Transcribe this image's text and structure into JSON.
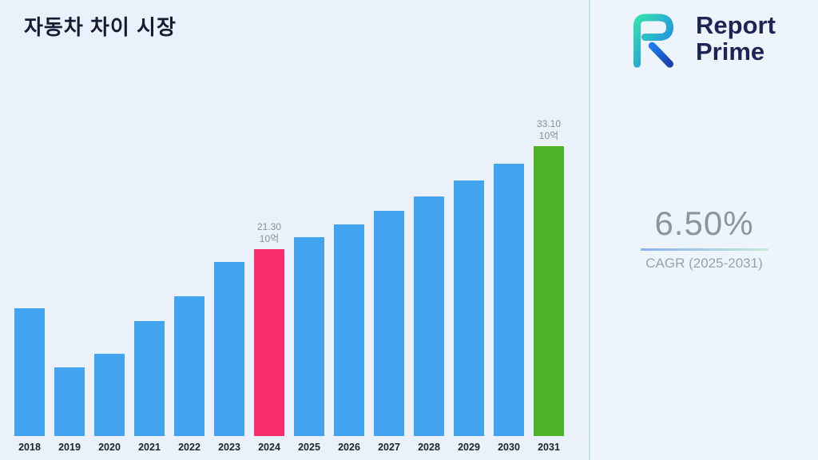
{
  "title": "자동차 차이 시장",
  "logo": {
    "line1": "Report",
    "line2": "Prime"
  },
  "stats": {
    "cagr_value": "6.50%",
    "cagr_label": "CAGR (2025-2031)"
  },
  "chart_data": {
    "type": "bar",
    "title": "자동차 차이 시장",
    "categories": [
      "2018",
      "2019",
      "2020",
      "2021",
      "2022",
      "2023",
      "2024",
      "2025",
      "2026",
      "2027",
      "2028",
      "2029",
      "2030",
      "2031"
    ],
    "values": [
      14.6,
      7.8,
      9.4,
      13.1,
      16.0,
      19.9,
      21.3,
      22.68,
      24.16,
      25.73,
      27.4,
      29.18,
      31.08,
      33.1
    ],
    "unit_label": "10억",
    "value_labels": {
      "2024": [
        "21.30",
        "10억"
      ],
      "2031": [
        "33.10",
        "10억"
      ]
    },
    "colors": {
      "default": "#42a4ee",
      "special": {
        "2024": "#fb2d6f",
        "2031": "#4cb426"
      }
    },
    "ylim": [
      0,
      35
    ],
    "legend": "none",
    "grid": "off"
  }
}
